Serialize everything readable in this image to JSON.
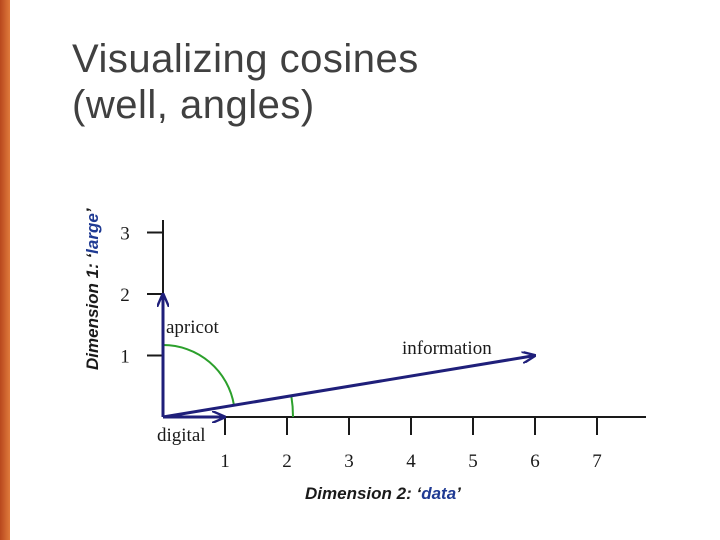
{
  "title": {
    "line1": "Visualizing cosines",
    "line2": "(well, angles)"
  },
  "x_axis": {
    "title_prefix": "Dimension 2: ‘",
    "title_word": "data",
    "title_suffix": "’",
    "ticks": [
      "1",
      "2",
      "3",
      "4",
      "5",
      "6",
      "7"
    ]
  },
  "y_axis": {
    "title_prefix": "Dimension 1: ‘",
    "title_word": "large",
    "title_suffix": "’",
    "ticks": [
      "1",
      "2",
      "3"
    ]
  },
  "vectors": [
    {
      "name": "apricot",
      "data": 0,
      "large": 2
    },
    {
      "name": "digital",
      "data": 1,
      "large": 0
    },
    {
      "name": "information",
      "data": 6,
      "large": 1
    }
  ],
  "colors": {
    "vector": "#1f1f7a",
    "angle_arc": "#2ca02c",
    "axis": "#1a1a1a",
    "accent_bar": "#c8572a",
    "axis_highlight": "#1f3a93"
  }
}
